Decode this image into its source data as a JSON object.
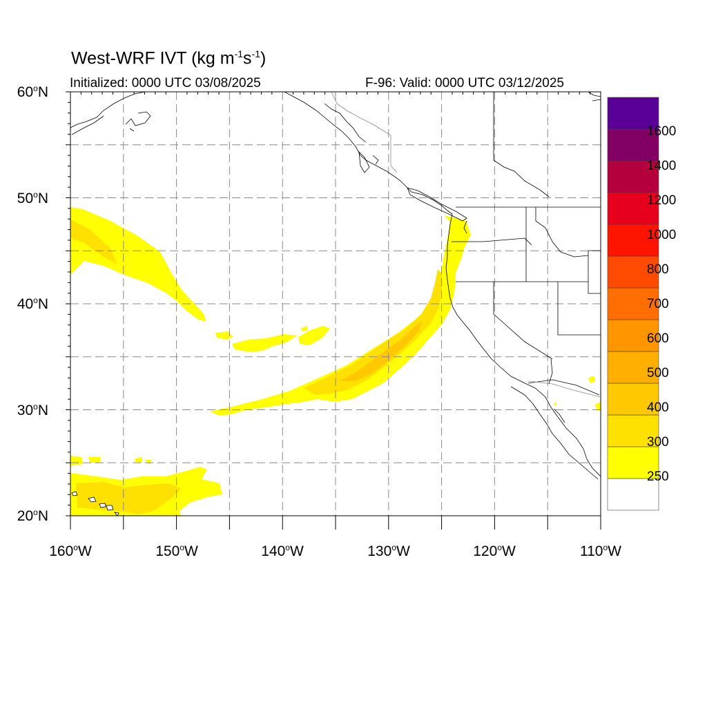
{
  "title": {
    "prefix": "West-WRF IVT (kg m",
    "exp1": "-1",
    "mid": "s",
    "exp2": "-1",
    "suffix": ")"
  },
  "subtitle_left": "Initialized: 0000 UTC 03/08/2025",
  "subtitle_right": "F-96: Valid: 0000 UTC 03/12/2025",
  "lat_labels": [
    {
      "num": "60",
      "hemi": "N"
    },
    {
      "num": "50",
      "hemi": "N"
    },
    {
      "num": "40",
      "hemi": "N"
    },
    {
      "num": "30",
      "hemi": "N"
    },
    {
      "num": "20",
      "hemi": "N"
    }
  ],
  "lon_labels": [
    {
      "num": "160",
      "hemi": "W"
    },
    {
      "num": "150",
      "hemi": "W"
    },
    {
      "num": "140",
      "hemi": "W"
    },
    {
      "num": "130",
      "hemi": "W"
    },
    {
      "num": "120",
      "hemi": "W"
    },
    {
      "num": "110",
      "hemi": "W"
    }
  ],
  "colorbar": {
    "labels": [
      "250",
      "300",
      "400",
      "500",
      "600",
      "700",
      "800",
      "1000",
      "1200",
      "1400",
      "1600"
    ],
    "colors": [
      "#ffffff",
      "#ffff00",
      "#ffe100",
      "#ffc800",
      "#ffaf00",
      "#ff9600",
      "#ff6e00",
      "#ff4b00",
      "#ff1400",
      "#e6001e",
      "#b4003c",
      "#820064",
      "#5a0096"
    ]
  },
  "map": {
    "extent": {
      "lon": [
        -160,
        -110
      ],
      "lat": [
        20,
        60
      ]
    },
    "grid_interval_deg": 5,
    "coastlines": true,
    "political_boundaries": true
  }
}
